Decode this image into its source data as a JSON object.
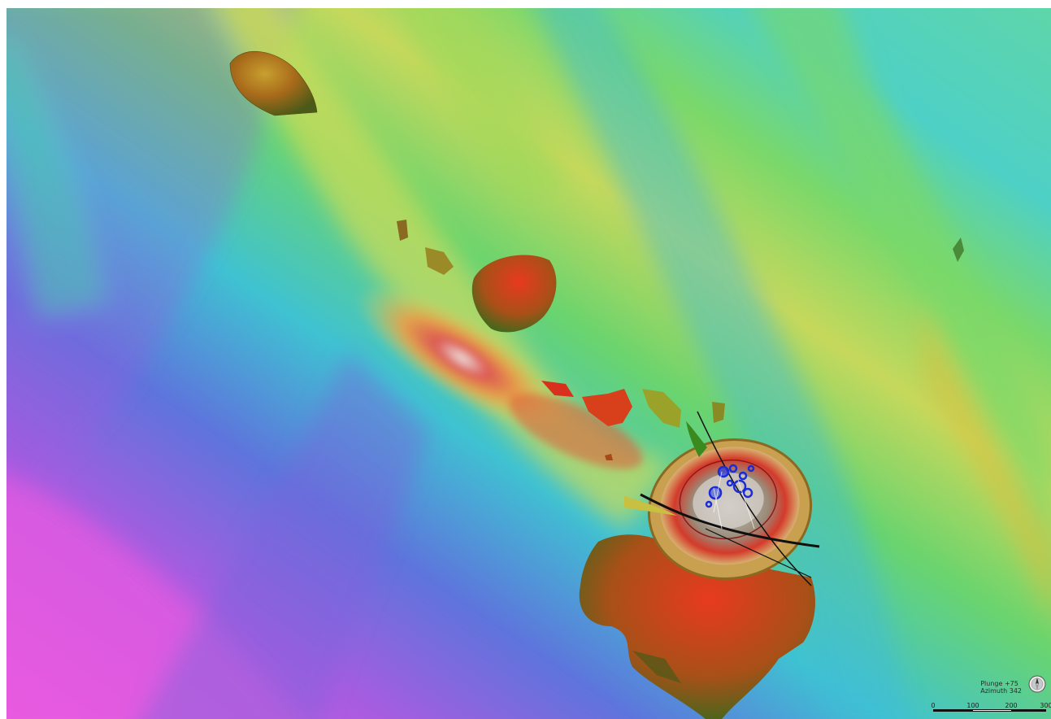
{
  "view": {
    "plunge_label": "Plunge +75",
    "azimuth_label": "Azimuth 342"
  },
  "compass": {
    "icon": "compass-icon"
  },
  "scale_bar": {
    "ticks": [
      "0",
      "100",
      "200",
      "300"
    ]
  },
  "colors": {
    "magenta": "#e25ad8",
    "purple": "#8a5cd6",
    "blue": "#4a78d8",
    "cyan": "#40c8d0",
    "green": "#6bd86a",
    "yellow": "#d6dc5a",
    "orange": "#e0a040",
    "red": "#d63a2a",
    "ore_body_brown": "#a86a20",
    "drillhole_blue": "#1a2cd8"
  }
}
